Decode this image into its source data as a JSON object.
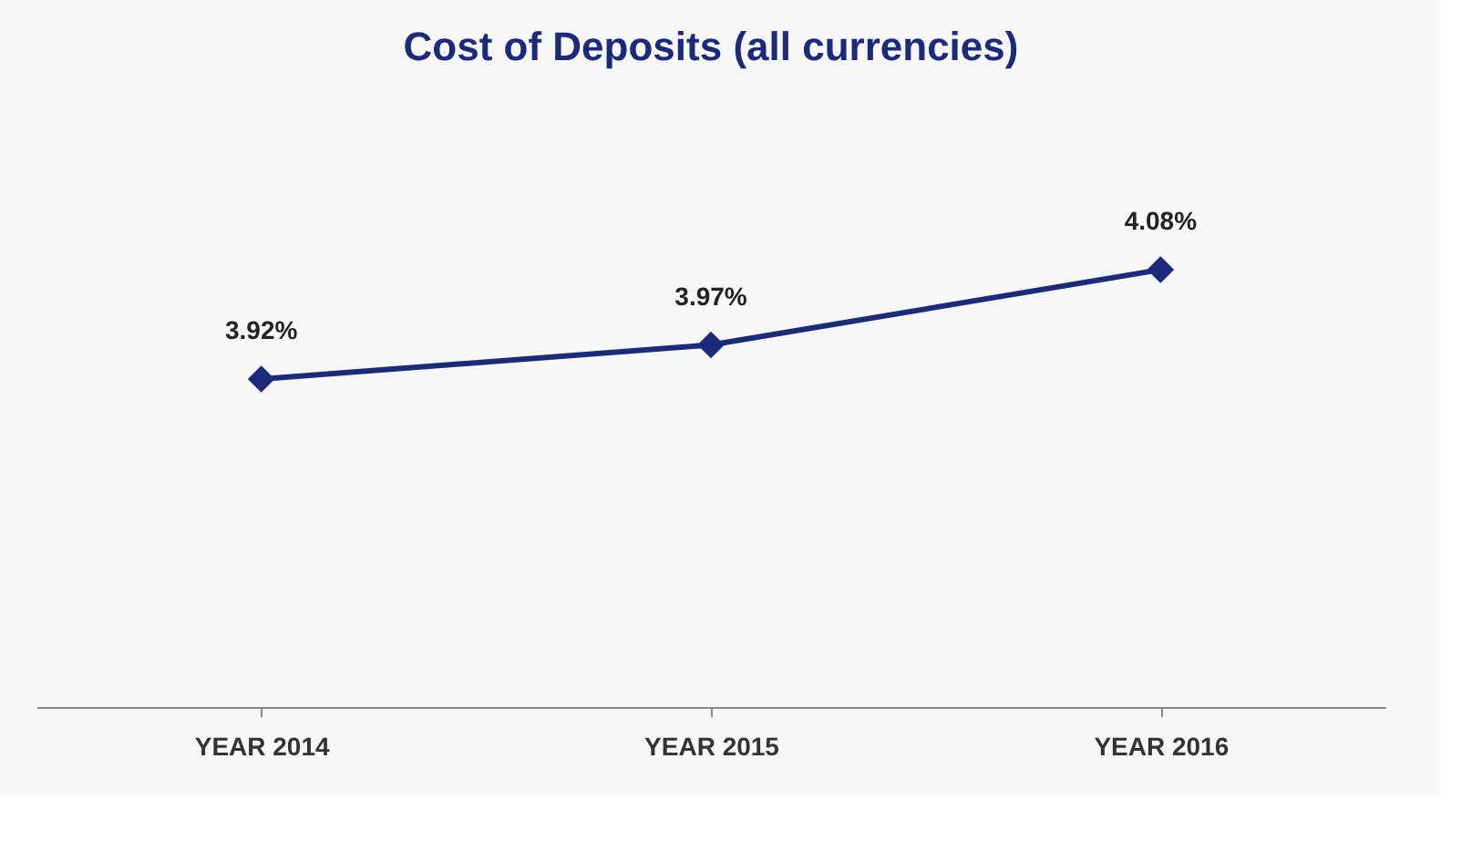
{
  "chart_data": {
    "type": "line",
    "title": "Cost of Deposits (all currencies)",
    "categories": [
      "YEAR 2014",
      "YEAR 2015",
      "YEAR 2016"
    ],
    "series": [
      {
        "color": "#1b2a7a",
        "values": [
          3.92,
          3.97,
          4.08
        ],
        "value_labels": [
          "3.92%",
          "3.97%",
          "4.08%"
        ]
      }
    ],
    "marker": "diamond",
    "line_style": "solid",
    "legend": false
  }
}
